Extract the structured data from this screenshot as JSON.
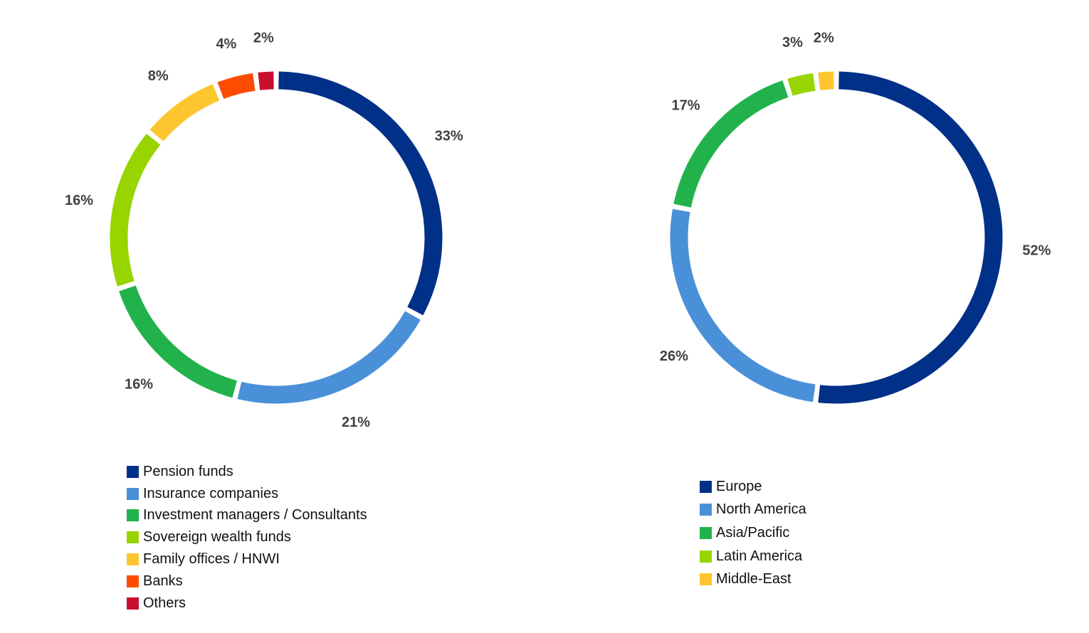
{
  "chart_data": [
    {
      "type": "pie",
      "donut": true,
      "start_angle_deg": 0,
      "direction": "clockwise",
      "legend_position": "bottom",
      "categories": [
        "Pension funds",
        "Insurance companies",
        "Investment managers / Consultants",
        "Sovereign wealth funds",
        "Family offices / HNWI",
        "Banks",
        "Others"
      ],
      "values": [
        33,
        21,
        16,
        16,
        8,
        4,
        2
      ],
      "labels": [
        "33%",
        "21%",
        "16%",
        "16%",
        "8%",
        "4%",
        "2%"
      ],
      "colors": [
        "#003087",
        "#4a90d9",
        "#22b24c",
        "#97d400",
        "#fec62e",
        "#fc4c02",
        "#c8102e"
      ]
    },
    {
      "type": "pie",
      "donut": true,
      "start_angle_deg": 0,
      "direction": "clockwise",
      "legend_position": "bottom",
      "categories": [
        "Europe",
        "North America",
        "Asia/Pacific",
        "Latin America",
        "Middle-East"
      ],
      "values": [
        52,
        26,
        17,
        3,
        2
      ],
      "labels": [
        "52%",
        "26%",
        "17%",
        "3%",
        "2%"
      ],
      "colors": [
        "#003087",
        "#4a90d9",
        "#22b24c",
        "#97d400",
        "#fec62e"
      ]
    }
  ]
}
